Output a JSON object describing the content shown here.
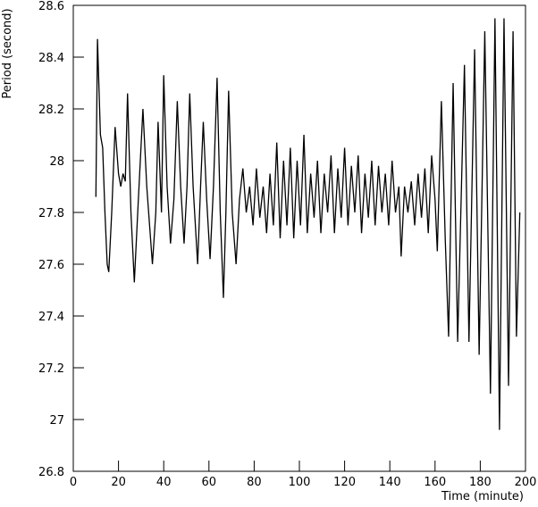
{
  "chart_data": {
    "type": "line",
    "x_label": "Time (minute)",
    "y_label": "Period (second)",
    "x": [
      10,
      10.7,
      12,
      13,
      14,
      15,
      15.7,
      17,
      18.5,
      20,
      21,
      22,
      23,
      24,
      25.5,
      27,
      28.5,
      30.8,
      32.5,
      35,
      36.5,
      37.5,
      39,
      40,
      41.5,
      43,
      44.5,
      46,
      47.5,
      49,
      50.3,
      51.5,
      53,
      55,
      56.3,
      57.5,
      59,
      60.5,
      62,
      63.6,
      65,
      66.4,
      67.5,
      68.7,
      70.3,
      72,
      73.5,
      75,
      76.5,
      78,
      79.5,
      81,
      82.5,
      84,
      85.5,
      87,
      88.5,
      90,
      91.5,
      93,
      94.5,
      96,
      97.5,
      99,
      100.5,
      102,
      103.5,
      105,
      106.5,
      108,
      109.5,
      111,
      112.5,
      114,
      115.5,
      117,
      118.5,
      120,
      121.5,
      123,
      124.5,
      126,
      127.5,
      129,
      130.5,
      132,
      133.5,
      135,
      136.5,
      138,
      139.5,
      141,
      142.5,
      144,
      145,
      146.5,
      148,
      149.5,
      151,
      152.5,
      154,
      155.5,
      157,
      158.5,
      160,
      161,
      162.8,
      164.5,
      166,
      168,
      170,
      173,
      175,
      177.5,
      179.5,
      182,
      184.5,
      186.5,
      188.5,
      190.5,
      192.5,
      194.5,
      196,
      197.5
    ],
    "series": [
      {
        "color": "#000000",
        "values": [
          27.86,
          28.47,
          28.1,
          28.05,
          27.8,
          27.6,
          27.57,
          27.8,
          28.13,
          27.95,
          27.9,
          27.95,
          27.92,
          28.26,
          27.8,
          27.53,
          27.8,
          28.2,
          27.9,
          27.6,
          27.8,
          28.15,
          27.8,
          28.33,
          27.9,
          27.68,
          27.85,
          28.23,
          27.9,
          27.68,
          27.9,
          28.26,
          27.9,
          27.6,
          27.9,
          28.15,
          27.85,
          27.62,
          27.9,
          28.32,
          27.8,
          27.47,
          27.8,
          28.27,
          27.8,
          27.6,
          27.85,
          27.97,
          27.8,
          27.9,
          27.75,
          27.97,
          27.78,
          27.9,
          27.72,
          27.95,
          27.75,
          28.07,
          27.7,
          28.0,
          27.75,
          28.05,
          27.7,
          28.0,
          27.75,
          28.1,
          27.72,
          27.95,
          27.78,
          28.0,
          27.72,
          27.95,
          27.8,
          28.02,
          27.72,
          27.97,
          27.78,
          28.05,
          27.75,
          27.98,
          27.8,
          28.02,
          27.72,
          27.95,
          27.78,
          28.0,
          27.75,
          27.98,
          27.8,
          27.95,
          27.75,
          28.0,
          27.8,
          27.9,
          27.63,
          27.9,
          27.8,
          27.92,
          27.75,
          27.95,
          27.78,
          27.97,
          27.72,
          28.02,
          27.85,
          27.65,
          28.23,
          27.7,
          27.32,
          28.3,
          27.3,
          28.37,
          27.3,
          28.43,
          27.25,
          28.5,
          27.1,
          28.55,
          26.96,
          28.55,
          27.13,
          28.5,
          27.32,
          27.8
        ]
      }
    ],
    "xlim": [
      0,
      200
    ],
    "xticks": [
      0,
      20,
      40,
      60,
      80,
      100,
      120,
      140,
      160,
      180,
      200
    ],
    "ylim": [
      26.8,
      28.6
    ],
    "yticks": [
      26.8,
      27,
      27.2,
      27.4,
      27.6,
      27.8,
      28,
      28.2,
      28.4,
      28.6
    ]
  }
}
